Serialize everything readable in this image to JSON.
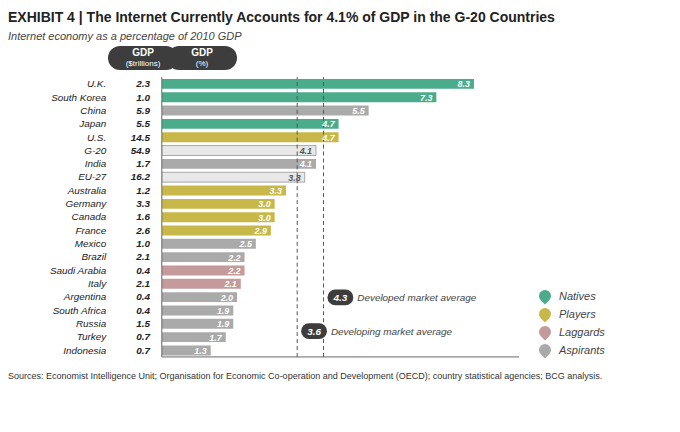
{
  "chart_data": {
    "type": "bar",
    "orientation": "horizontal",
    "title": "EXHIBIT 4 | The Internet Currently Accounts for 4.1% of GDP in the G-20 Countries",
    "subtitle": "Internet economy as a percentage of 2010 GDP",
    "categories": [
      "U.K.",
      "South Korea",
      "China",
      "Japan",
      "U.S.",
      "G-20",
      "India",
      "EU-27",
      "Australia",
      "Germany",
      "Canada",
      "France",
      "Mexico",
      "Brazil",
      "Saudi Arabia",
      "Italy",
      "Argentina",
      "South Africa",
      "Russia",
      "Turkey",
      "Indonesia"
    ],
    "values": [
      8.3,
      7.3,
      5.5,
      4.7,
      4.7,
      4.1,
      4.1,
      3.8,
      3.3,
      3.0,
      3.0,
      2.9,
      2.5,
      2.2,
      2.2,
      2.1,
      2.0,
      1.9,
      1.9,
      1.7,
      1.3
    ],
    "value_labels": [
      "8.3",
      "7.3",
      "5.5",
      "4.7",
      "4.7",
      "4.1",
      "4.1",
      "3.8",
      "3.3",
      "3.0",
      "3.0",
      "2.9",
      "2.5",
      "2.2",
      "2.2",
      "2.1",
      "2.0",
      "1.9",
      "1.9",
      "1.7",
      "1.3"
    ],
    "colors": [
      "#4aac8a",
      "#4aac8a",
      "#aaaaaa",
      "#4aac8a",
      "#c8b84a",
      "#e8e8e8",
      "#aaaaaa",
      "#e8e8e8",
      "#c8b84a",
      "#c8b84a",
      "#c8b84a",
      "#c8b84a",
      "#aaaaaa",
      "#aaaaaa",
      "#c49a9a",
      "#c49a9a",
      "#aaaaaa",
      "#aaaaaa",
      "#aaaaaa",
      "#aaaaaa",
      "#aaaaaa"
    ],
    "data_labels": true,
    "xlim": [
      0,
      9.5
    ],
    "tick_labels": false,
    "grid": false,
    "gdp_trillions": [
      "2.3",
      "1.0",
      "5.9",
      "5.5",
      "14.5",
      "54.9",
      "1.7",
      "16.2",
      "1.2",
      "3.3",
      "1.6",
      "2.6",
      "1.0",
      "2.1",
      "0.4",
      "2.1",
      "0.4",
      "0.4",
      "1.5",
      "0.7",
      "0.7"
    ],
    "column_headers": [
      [
        "GDP",
        "($trillions)"
      ],
      [
        "GDP",
        "(%)"
      ]
    ],
    "reference_lines": [
      {
        "value": 4.3,
        "label": "Developed market average"
      },
      {
        "value": 3.6,
        "label": "Developing market average"
      }
    ],
    "legend": "right",
    "legend_items": [
      {
        "name": "Natives",
        "color": "#4aac8a"
      },
      {
        "name": "Players",
        "color": "#c8b84a"
      },
      {
        "name": "Laggards",
        "color": "#c49a9a"
      },
      {
        "name": "Aspirants",
        "color": "#aaaaaa"
      }
    ],
    "sources": "Sources: Economist Intelligence Unit; Organisation for Economic Co-operation and Development (OECD); country statistical agencies; BCG analysis."
  }
}
